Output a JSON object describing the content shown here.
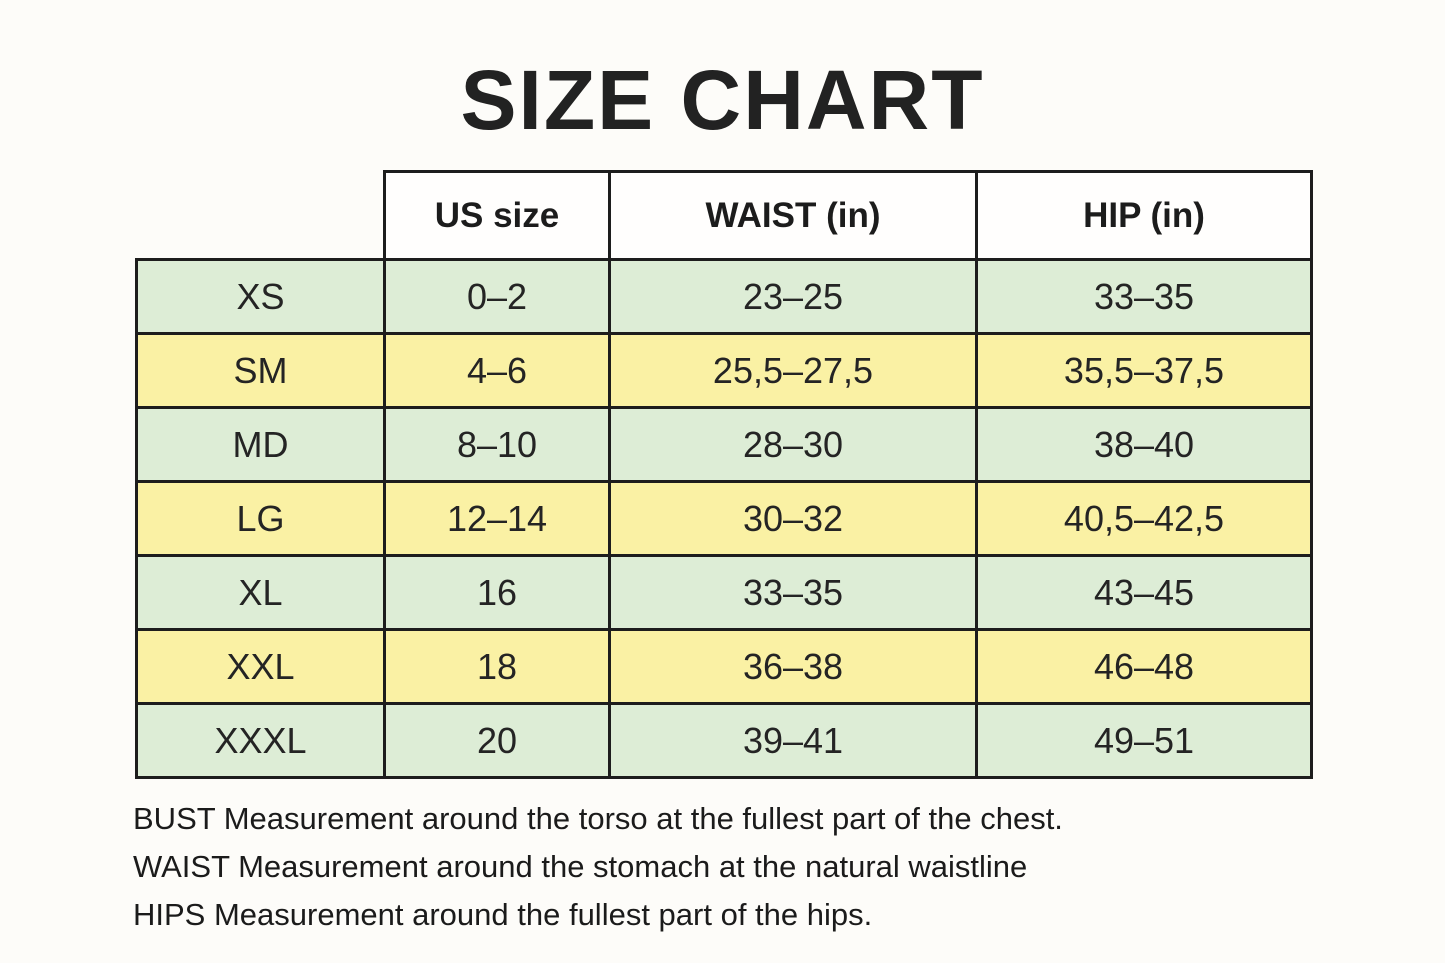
{
  "title": "SIZE CHART",
  "chart_data": {
    "type": "table",
    "title": "SIZE CHART",
    "columns": [
      "",
      "US size",
      "WAIST (in)",
      "HIP (in)"
    ],
    "rows": [
      [
        "XS",
        "0–2",
        "23–25",
        "33–35"
      ],
      [
        "SM",
        "4–6",
        "25,5–27,5",
        "35,5–37,5"
      ],
      [
        "MD",
        "8–10",
        "28–30",
        "38–40"
      ],
      [
        "LG",
        "12–14",
        "30–32",
        "40,5–42,5"
      ],
      [
        "XL",
        "16",
        "33–35",
        "43–45"
      ],
      [
        "XXL",
        "18",
        "36–38",
        "46–48"
      ],
      [
        "XXXL",
        "20",
        "39–41",
        "49–51"
      ]
    ],
    "row_colors": [
      "green",
      "yellow",
      "green",
      "yellow",
      "green",
      "yellow",
      "green"
    ],
    "layout": {
      "grid": true,
      "header_background": "#ffffff",
      "row_green": "#ddedd6",
      "row_yellow": "#faf1a4",
      "border_color": "#1d1d1d"
    }
  },
  "notes": [
    "BUST Measurement around the torso at the fullest part of the chest.",
    "WAIST Measurement around the stomach at the natural waistline",
    "HIPS Measurement around the fullest part of the hips."
  ]
}
